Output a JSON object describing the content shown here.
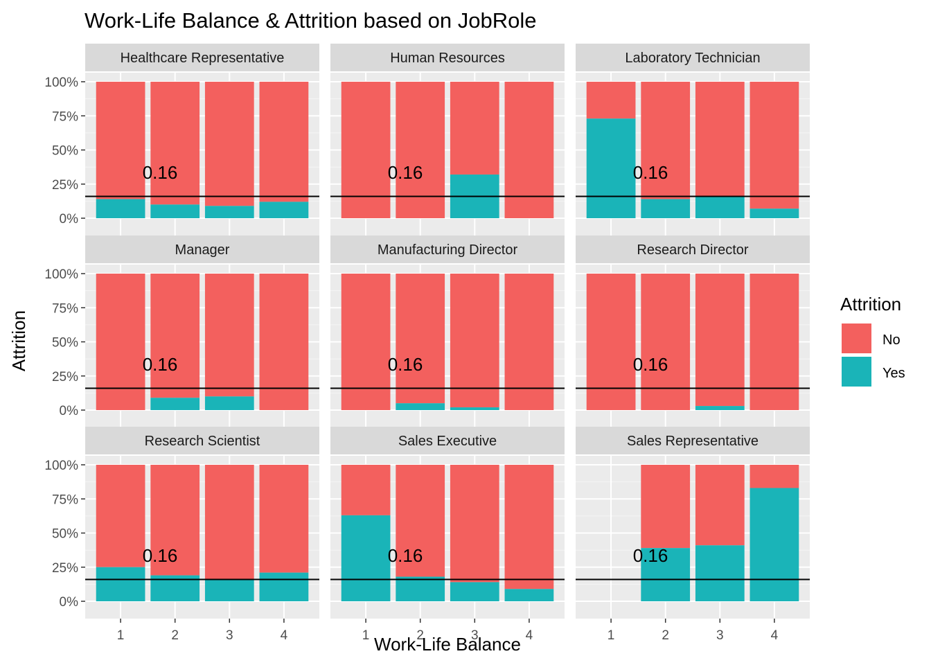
{
  "chart_data": {
    "type": "bar",
    "stacked": true,
    "position": "fill",
    "title": "Work-Life Balance & Attrition based on JobRole",
    "xlabel": "Work-Life Balance",
    "ylabel": "Attrition",
    "x_ticks": [
      "1",
      "2",
      "3",
      "4"
    ],
    "y_ticks": [
      "0%",
      "25%",
      "50%",
      "75%",
      "100%"
    ],
    "ylim": [
      0,
      1
    ],
    "grid": true,
    "legend": {
      "title": "Attrition",
      "position": "right",
      "items": [
        {
          "label": "No",
          "color": "#F8766D"
        },
        {
          "label": "Yes",
          "color": "#00BFC4"
        }
      ]
    },
    "reference_line": {
      "value": 0.16,
      "label": "0.16"
    },
    "colors": {
      "No": "#F3605E",
      "Yes": "#1AB4B8"
    },
    "facets": [
      {
        "name": "Healthcare Representative",
        "yes_share": [
          0.14,
          0.1,
          0.09,
          0.12
        ],
        "present": [
          true,
          true,
          true,
          true
        ]
      },
      {
        "name": "Human Resources",
        "yes_share": [
          0.0,
          0.0,
          0.32,
          0.0
        ],
        "present": [
          true,
          true,
          true,
          true
        ]
      },
      {
        "name": "Laboratory Technician",
        "yes_share": [
          0.73,
          0.14,
          0.16,
          0.07
        ],
        "present": [
          true,
          true,
          true,
          true
        ]
      },
      {
        "name": "Manager",
        "yes_share": [
          0.0,
          0.09,
          0.1,
          0.0
        ],
        "present": [
          true,
          true,
          true,
          true
        ]
      },
      {
        "name": "Manufacturing Director",
        "yes_share": [
          0.0,
          0.05,
          0.02,
          0.0
        ],
        "present": [
          true,
          true,
          true,
          true
        ]
      },
      {
        "name": "Research Director",
        "yes_share": [
          0.0,
          0.0,
          0.03,
          0.0
        ],
        "present": [
          true,
          true,
          true,
          true
        ]
      },
      {
        "name": "Research Scientist",
        "yes_share": [
          0.25,
          0.19,
          0.16,
          0.21
        ],
        "present": [
          true,
          true,
          true,
          true
        ]
      },
      {
        "name": "Sales Executive",
        "yes_share": [
          0.63,
          0.18,
          0.14,
          0.09
        ],
        "present": [
          true,
          true,
          true,
          true
        ]
      },
      {
        "name": "Sales Representative",
        "yes_share": [
          0.0,
          0.39,
          0.41,
          0.83
        ],
        "present": [
          false,
          true,
          true,
          true
        ]
      }
    ]
  }
}
